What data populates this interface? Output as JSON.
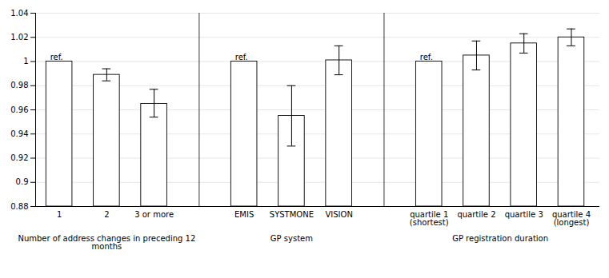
{
  "chart_data": {
    "type": "bar",
    "color": "#ffffff",
    "ylim": [
      0.88,
      1.04
    ],
    "yticks": [
      0.88,
      0.9,
      0.92,
      0.94,
      0.96,
      0.98,
      1,
      1.02,
      1.04
    ],
    "grid": true,
    "groups": [
      {
        "label": "Number of address changes in preceding 12\nmonths",
        "categories": [
          "1",
          "2",
          "3 or more"
        ],
        "values": [
          1.0,
          0.989,
          0.965
        ],
        "ci_lo": [
          null,
          0.984,
          0.954
        ],
        "ci_hi": [
          null,
          0.994,
          0.977
        ],
        "annotations": [
          "ref.",
          null,
          null
        ]
      },
      {
        "label": "GP system",
        "categories": [
          "EMIS",
          "SYSTMONE",
          "VISION"
        ],
        "values": [
          1.0,
          0.955,
          1.001
        ],
        "ci_lo": [
          null,
          0.93,
          0.989
        ],
        "ci_hi": [
          null,
          0.98,
          1.013
        ],
        "annotations": [
          "ref.",
          null,
          null
        ]
      },
      {
        "label": "GP registration duration",
        "categories": [
          "quartile 1\n(shortest)",
          "quartile 2",
          "quartile 3",
          "quartile 4\n(longest)"
        ],
        "values": [
          1.0,
          1.005,
          1.015,
          1.02
        ],
        "ci_lo": [
          null,
          0.993,
          1.007,
          1.013
        ],
        "ci_hi": [
          null,
          1.017,
          1.023,
          1.027
        ],
        "annotations": [
          "ref.",
          null,
          null,
          null
        ]
      }
    ]
  }
}
